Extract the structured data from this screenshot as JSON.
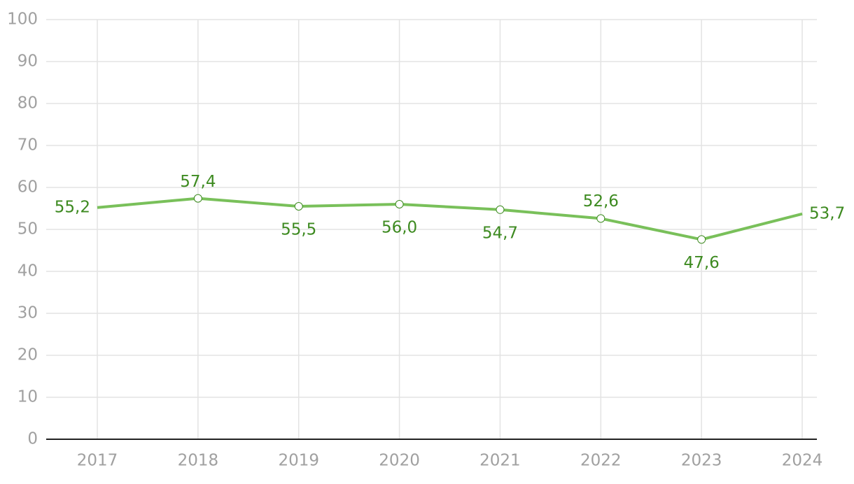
{
  "chart_data": {
    "type": "line",
    "categories": [
      "2017",
      "2018",
      "2019",
      "2020",
      "2021",
      "2022",
      "2023",
      "2024"
    ],
    "series": [
      {
        "color": "#79c05a",
        "values": [
          55.2,
          57.4,
          55.5,
          56.0,
          54.7,
          52.6,
          47.6,
          53.7
        ],
        "value_labels": [
          "55,2",
          "57,4",
          "55,5",
          "56,0",
          "54,7",
          "52,6",
          "47,6",
          "53,7"
        ]
      }
    ],
    "ylim": [
      0,
      100
    ],
    "yticks": [
      0,
      10,
      20,
      30,
      40,
      50,
      60,
      70,
      80,
      90,
      100
    ],
    "grid": true
  }
}
